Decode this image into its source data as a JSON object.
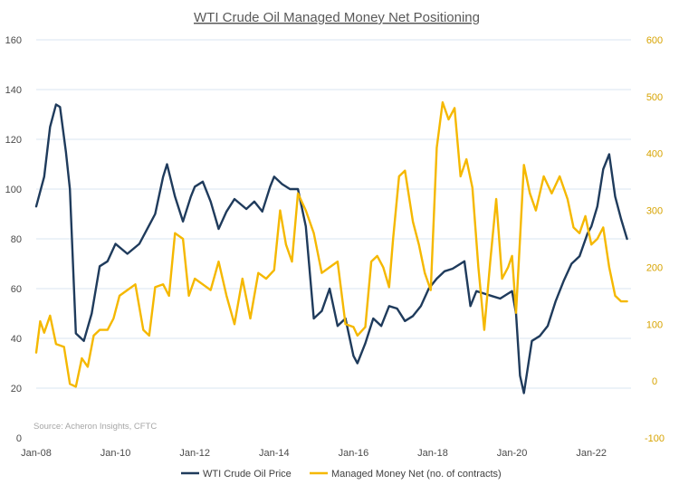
{
  "chart_data": {
    "type": "line",
    "title": "WTI Crude Oil Managed Money Net Positioning",
    "source": "Source: Acheron Insights, CFTC",
    "x_ticks": [
      "Jan-08",
      "Jan-10",
      "Jan-12",
      "Jan-14",
      "Jan-16",
      "Jan-18",
      "Jan-20",
      "Jan-22"
    ],
    "x_range": [
      "2008-01",
      "2022-12"
    ],
    "y_left": {
      "ticks": [
        "0",
        "20",
        "40",
        "60",
        "80",
        "100",
        "120",
        "140",
        "160"
      ],
      "range": [
        0,
        160
      ]
    },
    "y_right": {
      "ticks": [
        "-100",
        "0",
        "100",
        "200",
        "300",
        "400",
        "500",
        "600"
      ],
      "range": [
        -100,
        600
      ]
    },
    "grid": true,
    "legend_position": "bottom",
    "colors": {
      "oil": "#1f3b5c",
      "net": "#f5b800",
      "grid": "#d9e6f2"
    },
    "series": [
      {
        "name": "WTI Crude Oil Price",
        "axis": "left",
        "x": [
          2008.0,
          2008.2,
          2008.35,
          2008.5,
          2008.6,
          2008.75,
          2008.85,
          2009.0,
          2009.2,
          2009.4,
          2009.6,
          2009.8,
          2010.0,
          2010.3,
          2010.6,
          2010.9,
          2011.0,
          2011.2,
          2011.3,
          2011.5,
          2011.7,
          2011.9,
          2012.0,
          2012.2,
          2012.4,
          2012.6,
          2012.8,
          2013.0,
          2013.3,
          2013.5,
          2013.7,
          2013.9,
          2014.0,
          2014.2,
          2014.4,
          2014.6,
          2014.8,
          2015.0,
          2015.2,
          2015.4,
          2015.6,
          2015.8,
          2016.0,
          2016.1,
          2016.3,
          2016.5,
          2016.7,
          2016.9,
          2017.1,
          2017.3,
          2017.5,
          2017.7,
          2017.9,
          2018.1,
          2018.3,
          2018.5,
          2018.7,
          2018.8,
          2018.95,
          2019.1,
          2019.3,
          2019.5,
          2019.7,
          2019.9,
          2020.0,
          2020.1,
          2020.2,
          2020.3,
          2020.5,
          2020.7,
          2020.9,
          2021.1,
          2021.3,
          2021.5,
          2021.7,
          2021.9,
          2022.0,
          2022.15,
          2022.3,
          2022.45,
          2022.6,
          2022.75,
          2022.9
        ],
        "values": [
          93,
          105,
          125,
          134,
          133,
          115,
          100,
          42,
          39,
          50,
          69,
          71,
          78,
          74,
          78,
          87,
          90,
          105,
          110,
          97,
          87,
          97,
          101,
          103,
          95,
          84,
          91,
          96,
          92,
          95,
          91,
          101,
          105,
          102,
          100,
          100,
          85,
          48,
          51,
          60,
          45,
          48,
          33,
          30,
          38,
          48,
          45,
          53,
          52,
          47,
          49,
          53,
          60,
          64,
          67,
          68,
          70,
          71,
          53,
          59,
          58,
          57,
          56,
          58,
          59,
          50,
          25,
          18,
          39,
          41,
          45,
          55,
          63,
          70,
          73,
          82,
          85,
          93,
          108,
          114,
          97,
          88,
          80
        ]
      },
      {
        "name": "Managed Money Net (no. of contracts)",
        "axis": "right",
        "x": [
          2008.0,
          2008.1,
          2008.2,
          2008.35,
          2008.5,
          2008.7,
          2008.85,
          2009.0,
          2009.15,
          2009.3,
          2009.45,
          2009.6,
          2009.8,
          2009.95,
          2010.1,
          2010.3,
          2010.5,
          2010.7,
          2010.85,
          2011.0,
          2011.2,
          2011.35,
          2011.5,
          2011.7,
          2011.85,
          2012.0,
          2012.2,
          2012.4,
          2012.6,
          2012.8,
          2013.0,
          2013.2,
          2013.4,
          2013.6,
          2013.8,
          2014.0,
          2014.15,
          2014.3,
          2014.45,
          2014.6,
          2014.8,
          2015.0,
          2015.2,
          2015.4,
          2015.6,
          2015.8,
          2016.0,
          2016.1,
          2016.3,
          2016.45,
          2016.6,
          2016.75,
          2016.9,
          2017.0,
          2017.15,
          2017.3,
          2017.5,
          2017.65,
          2017.8,
          2017.95,
          2018.1,
          2018.25,
          2018.4,
          2018.55,
          2018.7,
          2018.85,
          2019.0,
          2019.15,
          2019.3,
          2019.45,
          2019.6,
          2019.75,
          2019.9,
          2020.0,
          2020.1,
          2020.2,
          2020.3,
          2020.45,
          2020.6,
          2020.8,
          2021.0,
          2021.2,
          2021.4,
          2021.55,
          2021.7,
          2021.85,
          2022.0,
          2022.15,
          2022.3,
          2022.45,
          2022.6,
          2022.75,
          2022.9
        ],
        "values": [
          50,
          105,
          85,
          115,
          65,
          60,
          -5,
          -10,
          40,
          25,
          80,
          90,
          90,
          110,
          150,
          160,
          170,
          90,
          80,
          165,
          170,
          150,
          260,
          250,
          150,
          180,
          170,
          160,
          210,
          150,
          100,
          180,
          110,
          190,
          180,
          195,
          300,
          240,
          210,
          330,
          300,
          260,
          190,
          200,
          210,
          100,
          95,
          80,
          95,
          210,
          220,
          200,
          165,
          250,
          360,
          370,
          280,
          240,
          190,
          160,
          410,
          490,
          460,
          480,
          360,
          390,
          340,
          200,
          90,
          210,
          320,
          180,
          200,
          220,
          120,
          250,
          380,
          330,
          300,
          360,
          330,
          360,
          320,
          270,
          260,
          290,
          240,
          250,
          270,
          200,
          150,
          140,
          140
        ]
      }
    ]
  }
}
